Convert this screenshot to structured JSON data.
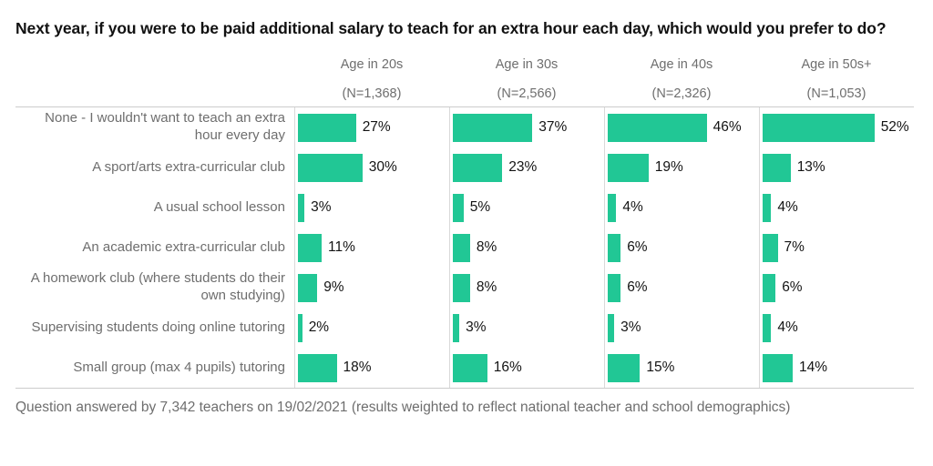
{
  "title": "Next year, if you were to be paid additional salary to teach for an extra hour each day, which would you prefer to do?",
  "footer": "Question answered by 7,342 teachers on 19/02/2021 (results weighted to reflect national teacher and school demographics)",
  "colors": {
    "bar": "#21c795",
    "gridline": "#d9d9d9",
    "separator": "#cccccc",
    "muted_text": "#6e6e6e",
    "value_text": "#141414"
  },
  "chart_data": {
    "type": "bar",
    "orientation": "horizontal",
    "unit": "%",
    "xlim": [
      0,
      72
    ],
    "grid": "column-baselines-only",
    "legend_position": "none",
    "group_headers": [
      {
        "label": "Age in 20s",
        "n": "(N=1,368)"
      },
      {
        "label": "Age in 30s",
        "n": "(N=2,566)"
      },
      {
        "label": "Age in 40s",
        "n": "(N=2,326)"
      },
      {
        "label": "Age in 50s+",
        "n": "(N=1,053)"
      }
    ],
    "categories": [
      "None - I wouldn't want to teach an extra hour every day",
      "A sport/arts extra-curricular club",
      "A usual school lesson",
      "An academic extra-curricular club",
      "A homework club (where students do their own studying)",
      "Supervising  students doing online tutoring",
      "Small group (max 4 pupils) tutoring"
    ],
    "series": [
      {
        "name": "Age in 20s (N=1,368)",
        "values": [
          27,
          30,
          3,
          11,
          9,
          2,
          18
        ]
      },
      {
        "name": "Age in 30s (N=2,566)",
        "values": [
          37,
          23,
          5,
          8,
          8,
          3,
          16
        ]
      },
      {
        "name": "Age in 40s (N=2,326)",
        "values": [
          46,
          19,
          4,
          6,
          6,
          3,
          15
        ]
      },
      {
        "name": "Age in 50s+ (N=1,053)",
        "values": [
          52,
          13,
          4,
          7,
          6,
          4,
          14
        ]
      }
    ]
  }
}
